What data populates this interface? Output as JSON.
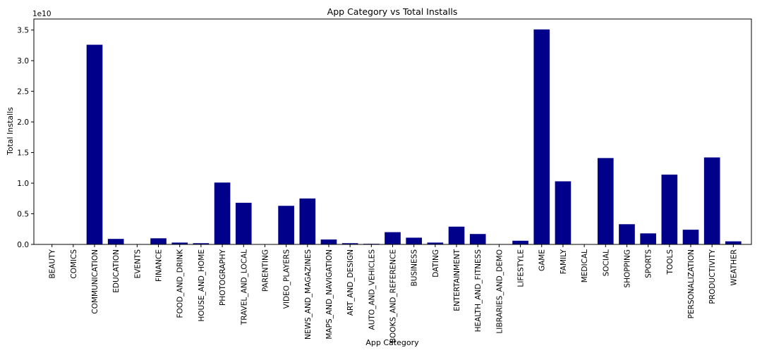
{
  "chart_data": {
    "type": "bar",
    "title": "App Category vs Total Installs",
    "xlabel": "App Category",
    "ylabel": "Total Installs",
    "y_multiplier_label": "1e10",
    "y_tick_labels": [
      "0.0",
      "0.5",
      "1.0",
      "1.5",
      "2.0",
      "2.5",
      "3.0",
      "3.5"
    ],
    "ylim": [
      0,
      3.68
    ],
    "bar_color": "#00008b",
    "grid": false,
    "categories": [
      "BEAUTY",
      "COMICS",
      "COMMUNICATION",
      "EDUCATION",
      "EVENTS",
      "FINANCE",
      "FOOD_AND_DRINK",
      "HOUSE_AND_HOME",
      "PHOTOGRAPHY",
      "TRAVEL_AND_LOCAL",
      "PARENTING",
      "VIDEO_PLAYERS",
      "NEWS_AND_MAGAZINES",
      "MAPS_AND_NAVIGATION",
      "ART_AND_DESIGN",
      "AUTO_AND_VEHICLES",
      "BOOKS_AND_REFERENCE",
      "BUSINESS",
      "DATING",
      "ENTERTAINMENT",
      "HEALTH_AND_FITNESS",
      "LIBRARIES_AND_DEMO",
      "LIFESTYLE",
      "GAME",
      "FAMILY",
      "MEDICAL",
      "SOCIAL",
      "SHOPPING",
      "SPORTS",
      "TOOLS",
      "PERSONALIZATION",
      "PRODUCTIVITY",
      "WEATHER"
    ],
    "values": [
      0.0,
      0.0,
      3.26,
      0.09,
      0.0,
      0.1,
      0.03,
      0.02,
      1.01,
      0.68,
      0.0,
      0.63,
      0.75,
      0.08,
      0.02,
      0.01,
      0.2,
      0.11,
      0.03,
      0.29,
      0.17,
      0.0,
      0.06,
      3.51,
      1.03,
      0.0,
      1.41,
      0.33,
      0.18,
      1.14,
      0.24,
      1.42,
      0.05
    ]
  }
}
